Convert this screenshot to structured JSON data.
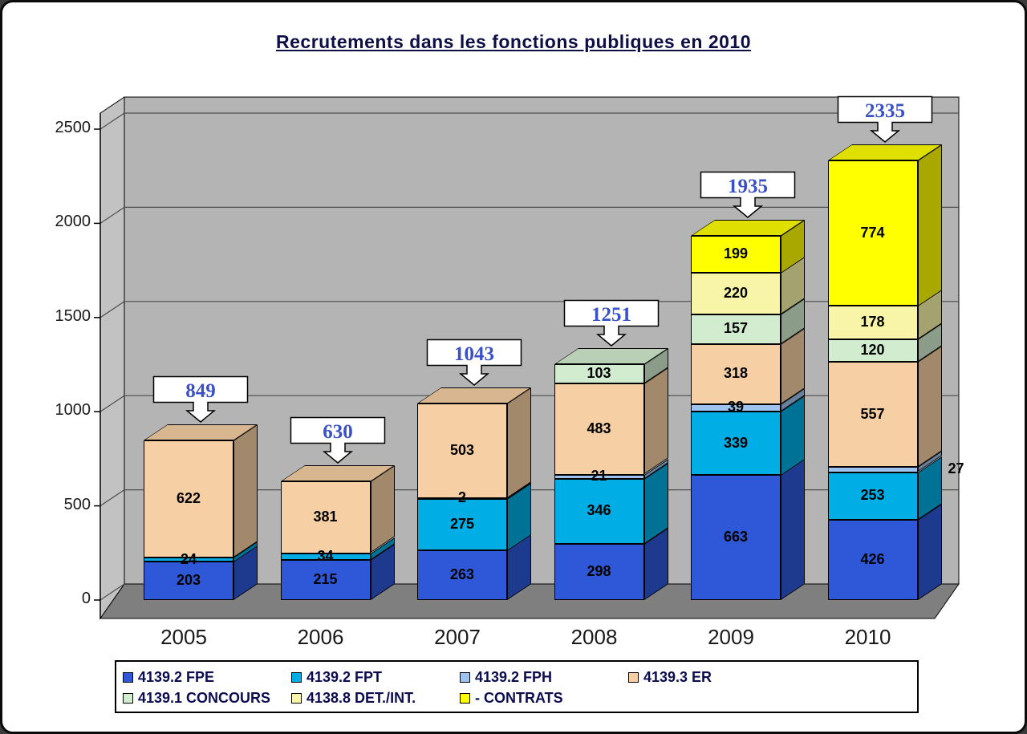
{
  "title": "Recrutements dans les fonctions publiques en 2010",
  "chart_data": {
    "type": "bar",
    "stacked": true,
    "title": "Recrutements dans les fonctions publiques en 2010",
    "categories": [
      "2005",
      "2006",
      "2007",
      "2008",
      "2009",
      "2010"
    ],
    "series": [
      {
        "name": "4139.2 FPE",
        "color": "#2e58d8",
        "values": [
          203,
          215,
          263,
          298,
          663,
          426
        ]
      },
      {
        "name": "4139.2 FPT",
        "color": "#00ade4",
        "values": [
          24,
          34,
          275,
          346,
          339,
          253
        ]
      },
      {
        "name": "4139.2 FPH",
        "color": "#9dc3ee",
        "values": [
          0,
          0,
          2,
          21,
          39,
          27
        ]
      },
      {
        "name": "4139.3 ER",
        "color": "#f6cfa4",
        "values": [
          622,
          381,
          503,
          483,
          318,
          557
        ]
      },
      {
        "name": "4139.1 CONCOURS",
        "color": "#d2ecd0",
        "values": [
          0,
          0,
          0,
          103,
          157,
          120
        ]
      },
      {
        "name": "4138.8 DET./INT.",
        "color": "#f8f5a8",
        "values": [
          0,
          0,
          0,
          0,
          220,
          178
        ]
      },
      {
        "name": "- CONTRATS",
        "color": "#ffff00",
        "values": [
          0,
          0,
          0,
          0,
          199,
          774
        ]
      }
    ],
    "totals": [
      849,
      630,
      1043,
      1251,
      1935,
      2335
    ],
    "totals_text_color": "#3a50c8",
    "y_ticks": [
      0,
      500,
      1000,
      1500,
      2000,
      2500
    ],
    "ylim": [
      0,
      2500
    ],
    "legend_position": "bottom",
    "legend_rows": [
      [
        0,
        1,
        2,
        3
      ],
      [
        4,
        5,
        6
      ]
    ],
    "outside_labels": [
      {
        "category_index": 5,
        "series_index": 2
      }
    ],
    "wall_color": "#b4b4b4",
    "side_wall_color": "#c2c2c2",
    "floor_color": "#7f7f7f",
    "grid_color": "#4d4d4d"
  }
}
